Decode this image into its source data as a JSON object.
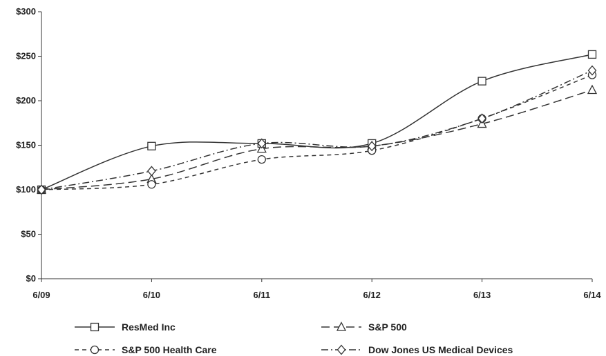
{
  "chart_data": {
    "type": "line",
    "categories": [
      "6/09",
      "6/10",
      "6/11",
      "6/12",
      "6/13",
      "6/14"
    ],
    "y_ticks": [
      "$0",
      "$50",
      "$100",
      "$150",
      "$200",
      "$250",
      "$300"
    ],
    "ylim": [
      0,
      300
    ],
    "grid": false,
    "legend_position": "bottom",
    "series": [
      {
        "name": "ResMed Inc",
        "marker": "square",
        "dash": "solid",
        "values": [
          100,
          149,
          152,
          152,
          222,
          252
        ]
      },
      {
        "name": "S&P 500",
        "marker": "triangle",
        "dash": "dashed",
        "values": [
          100,
          112,
          146,
          149,
          174,
          212
        ]
      },
      {
        "name": "S&P 500 Health Care",
        "marker": "circle",
        "dash": "short-dash",
        "values": [
          100,
          106,
          134,
          144,
          180,
          229
        ]
      },
      {
        "name": "Dow Jones US Medical Devices",
        "marker": "diamond",
        "dash": "dash-dot",
        "values": [
          100,
          121,
          152,
          149,
          180,
          234
        ]
      }
    ]
  }
}
